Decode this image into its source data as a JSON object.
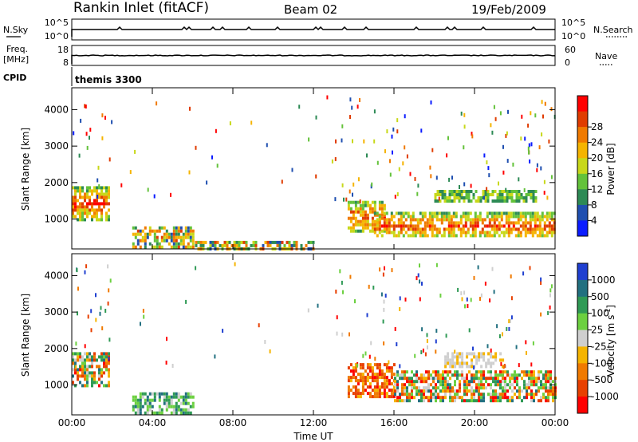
{
  "header": {
    "station": "Rankin Inlet (fitACF)",
    "beam": "Beam 02",
    "date": "19/Feb/2009"
  },
  "aux": {
    "nsky_label": "N.Sky",
    "nsky_ticks": [
      "10^5",
      "10^0"
    ],
    "nsearch_label": "N.Search",
    "nsearch_ticks": [
      "10^5",
      "10^0"
    ],
    "freq_label": "Freq.",
    "freq_unit": "[MHz]",
    "freq_ticks": [
      "18",
      "8"
    ],
    "nave_label": "Nave",
    "nave_ticks": [
      "60",
      "0"
    ],
    "cpid_label": "CPID",
    "cpid_value": "themis 3300"
  },
  "chart_data": [
    {
      "type": "heatmap",
      "name": "power",
      "ylabel": "Slant Range [km]",
      "xlabel": "",
      "xlim": [
        0,
        24
      ],
      "ylim": [
        180,
        4600
      ],
      "yticks": [
        "1000",
        "2000",
        "3000",
        "4000"
      ],
      "colorbar_label": "Power [dB]",
      "colorbar_ticks": [
        "4",
        "8",
        "12",
        "16",
        "20",
        "24",
        "28"
      ],
      "colorbar_colors": [
        "#0b1cff",
        "#1f4fb0",
        "#2d8a55",
        "#63c23a",
        "#c8d81a",
        "#f5b400",
        "#f07a00",
        "#e03c00",
        "#ff0000"
      ],
      "echo_regions": [
        {
          "t": [
            0.0,
            1.9
          ],
          "range_km": [
            1000,
            1900
          ],
          "level": "high"
        },
        {
          "t": [
            3.0,
            6.0
          ],
          "range_km": [
            250,
            800
          ],
          "level": "medium"
        },
        {
          "t": [
            6.0,
            12.0
          ],
          "range_km": [
            200,
            400
          ],
          "level": "medium"
        },
        {
          "t": [
            13.7,
            15.5
          ],
          "range_km": [
            700,
            1500
          ],
          "level": "high"
        },
        {
          "t": [
            15.0,
            24.0
          ],
          "range_km": [
            500,
            1200
          ],
          "level": "high"
        },
        {
          "t": [
            18.0,
            23.0
          ],
          "range_km": [
            1500,
            1800
          ],
          "level": "low"
        }
      ]
    },
    {
      "type": "heatmap",
      "name": "velocity",
      "ylabel": "Slant Range [km]",
      "xlabel": "Time UT",
      "xticks": [
        "00:00",
        "04:00",
        "08:00",
        "12:00",
        "16:00",
        "20:00",
        "00:00"
      ],
      "xlim": [
        0,
        24
      ],
      "ylim": [
        180,
        4600
      ],
      "yticks": [
        "1000",
        "2000",
        "3000",
        "4000"
      ],
      "colorbar_label": "Velocity [m s",
      "colorbar_label_sup": "-1",
      "colorbar_label_end": "]",
      "colorbar_ticks": [
        "1000",
        "500",
        "100",
        "25",
        "-25",
        "-100",
        "-500",
        "-1000"
      ],
      "colorbar_colors": [
        "#1f3fd0",
        "#227080",
        "#2f9a55",
        "#6cd040",
        "#cfcfcf",
        "#f5b400",
        "#f07a00",
        "#e84000",
        "#ff0000"
      ],
      "echo_regions": [
        {
          "t": [
            0.0,
            1.9
          ],
          "range_km": [
            1000,
            1900
          ],
          "level": "mixed"
        },
        {
          "t": [
            3.0,
            6.0
          ],
          "range_km": [
            250,
            800
          ],
          "level": "positive"
        },
        {
          "t": [
            13.7,
            16.0
          ],
          "range_km": [
            700,
            1600
          ],
          "level": "negative"
        },
        {
          "t": [
            16.0,
            24.0
          ],
          "range_km": [
            600,
            1400
          ],
          "level": "mixed"
        },
        {
          "t": [
            18.5,
            21.5
          ],
          "range_km": [
            1500,
            1900
          ],
          "level": "near-zero"
        }
      ]
    }
  ]
}
